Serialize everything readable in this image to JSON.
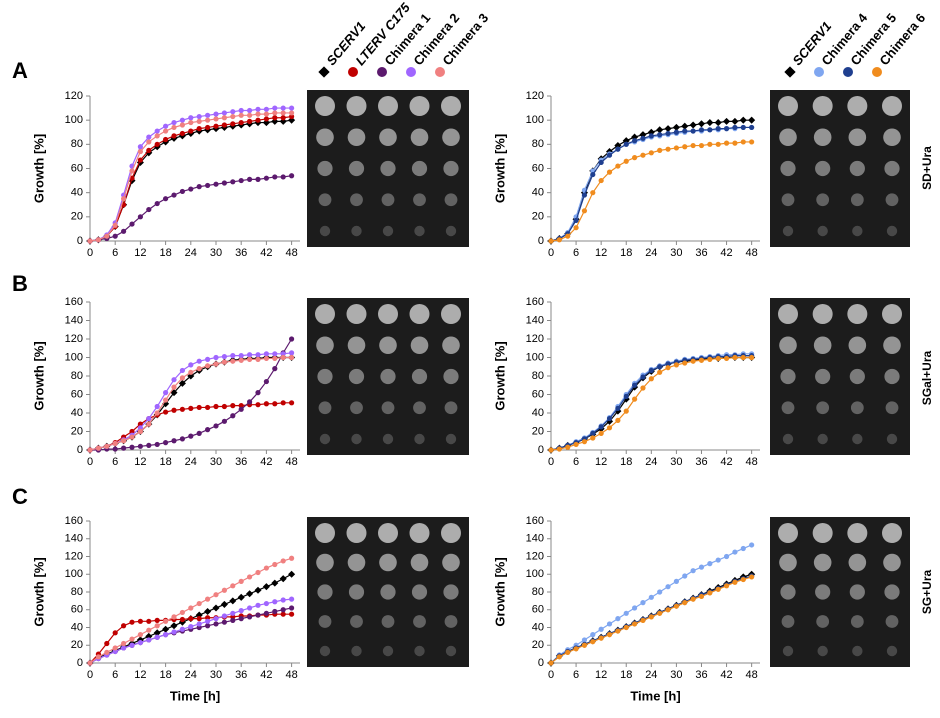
{
  "panels": [
    "A",
    "B",
    "C"
  ],
  "conditions": [
    "SD+Ura",
    "SGal+Ura",
    "SG+Ura"
  ],
  "chart_data": [
    {
      "type": "line",
      "ylabel": "Growth [%]",
      "xlim": [
        0,
        50
      ],
      "xticks": [
        0,
        6,
        12,
        18,
        24,
        30,
        36,
        42,
        48
      ],
      "ylim": [
        0,
        120
      ],
      "yticks": [
        0,
        20,
        40,
        60,
        80,
        100,
        120
      ],
      "x": [
        0,
        2,
        4,
        6,
        8,
        10,
        12,
        14,
        16,
        18,
        20,
        22,
        24,
        26,
        28,
        30,
        32,
        34,
        36,
        38,
        40,
        42,
        44,
        46,
        48
      ],
      "series": [
        {
          "name": "SCERV1",
          "color": "#000000",
          "values": [
            0,
            1,
            4,
            12,
            30,
            50,
            65,
            73,
            78,
            82,
            85,
            87,
            89,
            91,
            92,
            93,
            94,
            95,
            96,
            97,
            98,
            98,
            99,
            99,
            100
          ]
        },
        {
          "name": "LTERV C175",
          "color": "#c00000",
          "values": [
            0,
            1,
            4,
            12,
            30,
            52,
            67,
            75,
            80,
            84,
            87,
            89,
            91,
            93,
            94,
            95,
            96,
            97,
            98,
            99,
            100,
            101,
            102,
            102,
            103
          ]
        },
        {
          "name": "Chimera 1",
          "color": "#5c1a6e",
          "values": [
            0,
            1,
            2,
            4,
            8,
            14,
            20,
            26,
            31,
            35,
            38,
            41,
            43,
            45,
            46,
            47,
            48,
            49,
            50,
            51,
            51,
            52,
            53,
            53,
            54
          ]
        },
        {
          "name": "Chimera 2",
          "color": "#a066ff",
          "values": [
            0,
            1,
            5,
            15,
            38,
            62,
            78,
            86,
            91,
            95,
            98,
            100,
            102,
            103,
            104,
            105,
            106,
            107,
            108,
            108,
            109,
            109,
            110,
            110,
            110
          ]
        },
        {
          "name": "Chimera 3",
          "color": "#f08080",
          "values": [
            0,
            1,
            4,
            13,
            35,
            58,
            74,
            82,
            87,
            91,
            94,
            96,
            98,
            99,
            100,
            101,
            102,
            103,
            104,
            104,
            105,
            105,
            106,
            106,
            106
          ]
        }
      ]
    },
    {
      "type": "line",
      "ylabel": "Growth [%]",
      "xlim": [
        0,
        50
      ],
      "xticks": [
        0,
        6,
        12,
        18,
        24,
        30,
        36,
        42,
        48
      ],
      "ylim": [
        0,
        120
      ],
      "yticks": [
        0,
        20,
        40,
        60,
        80,
        100,
        120
      ],
      "x": [
        0,
        2,
        4,
        6,
        8,
        10,
        12,
        14,
        16,
        18,
        20,
        22,
        24,
        26,
        28,
        30,
        32,
        34,
        36,
        38,
        40,
        42,
        44,
        46,
        48
      ],
      "series": [
        {
          "name": "SCERV1",
          "color": "#000000",
          "values": [
            0,
            2,
            6,
            18,
            40,
            58,
            68,
            74,
            79,
            83,
            86,
            88,
            90,
            92,
            93,
            94,
            95,
            96,
            97,
            98,
            98,
            99,
            99,
            100,
            100
          ]
        },
        {
          "name": "Chimera 4",
          "color": "#7fa6f0",
          "values": [
            0,
            2,
            7,
            20,
            42,
            58,
            67,
            72,
            76,
            80,
            82,
            84,
            86,
            87,
            88,
            89,
            90,
            91,
            91,
            92,
            92,
            93,
            93,
            94,
            94
          ]
        },
        {
          "name": "Chimera 5",
          "color": "#1f3f8f",
          "values": [
            0,
            2,
            6,
            17,
            38,
            55,
            65,
            71,
            76,
            80,
            83,
            85,
            87,
            88,
            89,
            90,
            91,
            91,
            92,
            92,
            93,
            93,
            94,
            94,
            94
          ]
        },
        {
          "name": "Chimera 6",
          "color": "#f08c1e",
          "values": [
            0,
            1,
            4,
            11,
            25,
            40,
            50,
            57,
            62,
            66,
            69,
            71,
            73,
            75,
            76,
            77,
            78,
            79,
            79,
            80,
            80,
            81,
            81,
            82,
            82
          ]
        }
      ]
    },
    {
      "type": "line",
      "ylabel": "Growth [%]",
      "xlim": [
        0,
        50
      ],
      "xticks": [
        0,
        6,
        12,
        18,
        24,
        30,
        36,
        42,
        48
      ],
      "ylim": [
        0,
        160
      ],
      "yticks": [
        0,
        20,
        40,
        60,
        80,
        100,
        120,
        140,
        160
      ],
      "x": [
        0,
        2,
        4,
        6,
        8,
        10,
        12,
        14,
        16,
        18,
        20,
        22,
        24,
        26,
        28,
        30,
        32,
        34,
        36,
        38,
        40,
        42,
        44,
        46,
        48
      ],
      "series": [
        {
          "name": "SCERV1",
          "color": "#000000",
          "values": [
            0,
            2,
            4,
            7,
            10,
            14,
            20,
            28,
            38,
            50,
            62,
            72,
            80,
            86,
            90,
            93,
            95,
            97,
            98,
            99,
            99,
            100,
            100,
            100,
            100
          ]
        },
        {
          "name": "LTERV C175",
          "color": "#c00000",
          "values": [
            0,
            2,
            4,
            8,
            14,
            20,
            28,
            34,
            38,
            41,
            43,
            44,
            45,
            46,
            46,
            47,
            47,
            48,
            48,
            49,
            49,
            50,
            50,
            51,
            51
          ]
        },
        {
          "name": "Chimera 1",
          "color": "#5c1a6e",
          "values": [
            0,
            0,
            1,
            1,
            2,
            3,
            4,
            5,
            6,
            8,
            10,
            12,
            15,
            18,
            22,
            26,
            31,
            37,
            44,
            52,
            62,
            74,
            88,
            105,
            120
          ]
        },
        {
          "name": "Chimera 2",
          "color": "#a066ff",
          "values": [
            0,
            2,
            4,
            7,
            11,
            16,
            24,
            34,
            47,
            62,
            76,
            86,
            92,
            96,
            98,
            100,
            101,
            102,
            102,
            103,
            103,
            104,
            104,
            104,
            105
          ]
        },
        {
          "name": "Chimera 3",
          "color": "#f08080",
          "values": [
            0,
            2,
            4,
            7,
            10,
            14,
            20,
            28,
            40,
            54,
            68,
            78,
            84,
            88,
            91,
            93,
            95,
            96,
            97,
            98,
            98,
            99,
            99,
            100,
            100
          ]
        }
      ]
    },
    {
      "type": "line",
      "ylabel": "Growth [%]",
      "xlim": [
        0,
        50
      ],
      "xticks": [
        0,
        6,
        12,
        18,
        24,
        30,
        36,
        42,
        48
      ],
      "ylim": [
        0,
        160
      ],
      "yticks": [
        0,
        20,
        40,
        60,
        80,
        100,
        120,
        140,
        160
      ],
      "x": [
        0,
        2,
        4,
        6,
        8,
        10,
        12,
        14,
        16,
        18,
        20,
        22,
        24,
        26,
        28,
        30,
        32,
        34,
        36,
        38,
        40,
        42,
        44,
        46,
        48
      ],
      "series": [
        {
          "name": "SCERV1",
          "color": "#000000",
          "values": [
            0,
            2,
            5,
            8,
            12,
            17,
            23,
            31,
            42,
            55,
            68,
            78,
            85,
            90,
            93,
            95,
            96,
            97,
            98,
            99,
            99,
            100,
            100,
            100,
            100
          ]
        },
        {
          "name": "Chimera 4",
          "color": "#7fa6f0",
          "values": [
            0,
            2,
            5,
            9,
            13,
            19,
            26,
            35,
            47,
            60,
            72,
            81,
            87,
            91,
            94,
            96,
            98,
            99,
            100,
            101,
            102,
            103,
            103,
            104,
            104
          ]
        },
        {
          "name": "Chimera 5",
          "color": "#1f3f8f",
          "values": [
            0,
            2,
            5,
            8,
            12,
            18,
            25,
            34,
            45,
            58,
            70,
            79,
            86,
            90,
            93,
            95,
            97,
            98,
            99,
            100,
            101,
            101,
            102,
            102,
            102
          ]
        },
        {
          "name": "Chimera 6",
          "color": "#f08c1e",
          "values": [
            0,
            1,
            3,
            6,
            9,
            13,
            18,
            24,
            32,
            42,
            55,
            67,
            77,
            84,
            89,
            92,
            94,
            96,
            97,
            98,
            99,
            99,
            100,
            100,
            100
          ]
        }
      ]
    },
    {
      "type": "line",
      "ylabel": "Growth [%]",
      "xlabel": "Time [h]",
      "xlim": [
        0,
        50
      ],
      "xticks": [
        0,
        6,
        12,
        18,
        24,
        30,
        36,
        42,
        48
      ],
      "ylim": [
        0,
        160
      ],
      "yticks": [
        0,
        20,
        40,
        60,
        80,
        100,
        120,
        140,
        160
      ],
      "x": [
        0,
        2,
        4,
        6,
        8,
        10,
        12,
        14,
        16,
        18,
        20,
        22,
        24,
        26,
        28,
        30,
        32,
        34,
        36,
        38,
        40,
        42,
        44,
        46,
        48
      ],
      "series": [
        {
          "name": "SCERV1",
          "color": "#000000",
          "values": [
            0,
            6,
            10,
            14,
            18,
            22,
            26,
            30,
            34,
            38,
            42,
            46,
            50,
            54,
            58,
            62,
            66,
            70,
            74,
            78,
            82,
            86,
            90,
            95,
            100
          ]
        },
        {
          "name": "LTERV C175",
          "color": "#c00000",
          "values": [
            0,
            10,
            22,
            34,
            42,
            46,
            47,
            47,
            48,
            48,
            49,
            49,
            50,
            50,
            51,
            51,
            52,
            52,
            53,
            53,
            54,
            54,
            55,
            55,
            55
          ]
        },
        {
          "name": "Chimera 1",
          "color": "#5c1a6e",
          "values": [
            0,
            5,
            9,
            13,
            17,
            20,
            23,
            26,
            29,
            32,
            34,
            36,
            38,
            40,
            42,
            44,
            46,
            48,
            50,
            52,
            54,
            56,
            58,
            60,
            62
          ]
        },
        {
          "name": "Chimera 2",
          "color": "#a066ff",
          "values": [
            0,
            5,
            9,
            13,
            17,
            20,
            23,
            26,
            29,
            32,
            35,
            38,
            41,
            44,
            47,
            50,
            53,
            56,
            59,
            62,
            65,
            67,
            69,
            71,
            72
          ]
        },
        {
          "name": "Chimera 3",
          "color": "#f08080",
          "values": [
            0,
            7,
            12,
            17,
            22,
            27,
            32,
            37,
            42,
            47,
            52,
            57,
            62,
            67,
            72,
            77,
            82,
            87,
            92,
            97,
            102,
            107,
            111,
            115,
            118
          ]
        }
      ]
    },
    {
      "type": "line",
      "ylabel": "Growth [%]",
      "xlabel": "Time [h]",
      "xlim": [
        0,
        50
      ],
      "xticks": [
        0,
        6,
        12,
        18,
        24,
        30,
        36,
        42,
        48
      ],
      "ylim": [
        0,
        160
      ],
      "yticks": [
        0,
        20,
        40,
        60,
        80,
        100,
        120,
        140,
        160
      ],
      "x": [
        0,
        2,
        4,
        6,
        8,
        10,
        12,
        14,
        16,
        18,
        20,
        22,
        24,
        26,
        28,
        30,
        32,
        34,
        36,
        38,
        40,
        42,
        44,
        46,
        48
      ],
      "series": [
        {
          "name": "SCERV1",
          "color": "#000000",
          "values": [
            0,
            8,
            13,
            17,
            21,
            25,
            29,
            33,
            37,
            41,
            45,
            49,
            53,
            57,
            61,
            65,
            69,
            73,
            77,
            81,
            85,
            89,
            93,
            97,
            100
          ]
        },
        {
          "name": "Chimera 4",
          "color": "#7fa6f0",
          "values": [
            0,
            9,
            15,
            20,
            26,
            32,
            38,
            44,
            50,
            56,
            62,
            68,
            74,
            80,
            86,
            92,
            98,
            104,
            108,
            112,
            116,
            120,
            125,
            129,
            133
          ]
        },
        {
          "name": "Chimera 5",
          "color": "#1f3f8f",
          "values": [
            0,
            8,
            13,
            17,
            21,
            25,
            29,
            33,
            37,
            41,
            45,
            49,
            53,
            57,
            61,
            65,
            69,
            73,
            77,
            80,
            84,
            88,
            92,
            95,
            98
          ]
        },
        {
          "name": "Chimera 6",
          "color": "#f08c1e",
          "values": [
            0,
            7,
            12,
            16,
            20,
            24,
            28,
            32,
            36,
            40,
            44,
            48,
            52,
            56,
            60,
            64,
            68,
            72,
            75,
            79,
            83,
            87,
            91,
            94,
            97
          ]
        }
      ]
    }
  ]
}
